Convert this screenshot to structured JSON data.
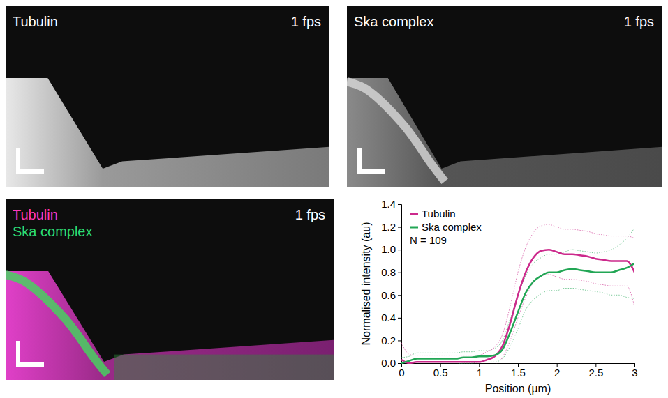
{
  "kymographs": [
    {
      "labels": [
        "Tubulin"
      ],
      "rate": "1 fps"
    },
    {
      "labels": [
        "Ska complex"
      ],
      "rate": "1 fps"
    },
    {
      "labels": [
        "Tubulin",
        "Ska complex"
      ],
      "rate": "1 fps"
    }
  ],
  "chart_data": {
    "type": "line",
    "x_label": "Position (µm)",
    "y_label": "Normalised intensity (au)",
    "annotation": "N = 109",
    "legend": "upper left",
    "x": [
      0,
      0.1,
      0.2,
      0.3,
      0.4,
      0.5,
      0.6,
      0.7,
      0.8,
      0.9,
      1.0,
      1.1,
      1.2,
      1.3,
      1.4,
      1.5,
      1.6,
      1.7,
      1.8,
      1.9,
      2.0,
      2.1,
      2.2,
      2.3,
      2.4,
      2.5,
      2.6,
      2.7,
      2.8,
      2.9,
      3.0
    ],
    "series": [
      {
        "name": "Tubulin",
        "color": "#cc2a8c",
        "values": [
          0.03,
          0.0,
          0.01,
          0.01,
          0.01,
          0.01,
          0.01,
          0.01,
          0.01,
          0.01,
          0.01,
          0.03,
          0.06,
          0.15,
          0.35,
          0.6,
          0.8,
          0.93,
          0.99,
          1.0,
          0.98,
          0.96,
          0.96,
          0.95,
          0.94,
          0.92,
          0.91,
          0.9,
          0.9,
          0.9,
          0.8
        ],
        "errors": [
          0.15,
          0.08,
          0.06,
          0.06,
          0.06,
          0.06,
          0.06,
          0.06,
          0.06,
          0.06,
          0.06,
          0.07,
          0.08,
          0.1,
          0.15,
          0.2,
          0.22,
          0.22,
          0.22,
          0.22,
          0.22,
          0.22,
          0.22,
          0.22,
          0.22,
          0.22,
          0.22,
          0.22,
          0.22,
          0.22,
          0.3
        ]
      },
      {
        "name": "Ska complex",
        "color": "#22a655",
        "values": [
          0.0,
          0.02,
          0.04,
          0.04,
          0.04,
          0.04,
          0.04,
          0.04,
          0.05,
          0.05,
          0.06,
          0.06,
          0.07,
          0.12,
          0.27,
          0.45,
          0.62,
          0.72,
          0.77,
          0.8,
          0.8,
          0.82,
          0.83,
          0.82,
          0.81,
          0.8,
          0.8,
          0.8,
          0.82,
          0.84,
          0.88
        ],
        "errors": [
          0.05,
          0.04,
          0.05,
          0.05,
          0.05,
          0.05,
          0.05,
          0.05,
          0.05,
          0.05,
          0.05,
          0.05,
          0.06,
          0.08,
          0.12,
          0.15,
          0.15,
          0.16,
          0.16,
          0.16,
          0.16,
          0.16,
          0.17,
          0.17,
          0.17,
          0.17,
          0.18,
          0.2,
          0.22,
          0.26,
          0.31
        ]
      }
    ],
    "xlim": [
      0,
      3
    ],
    "xticks": [
      0,
      0.5,
      1,
      1.5,
      2,
      2.5,
      3
    ],
    "ylim": [
      0,
      1.4
    ],
    "yticks": [
      {
        "value": 0,
        "label": "0.0"
      },
      {
        "value": 0.2,
        "label": "0.2"
      },
      {
        "value": 0.4,
        "label": "0.4"
      },
      {
        "value": 0.6,
        "label": "0.6"
      },
      {
        "value": 0.8,
        "label": "0.8"
      },
      {
        "value": 1.0,
        "label": "1.0"
      },
      {
        "value": 1.2,
        "label": "1.2"
      },
      {
        "value": 1.4,
        "label": "1.4"
      }
    ]
  }
}
